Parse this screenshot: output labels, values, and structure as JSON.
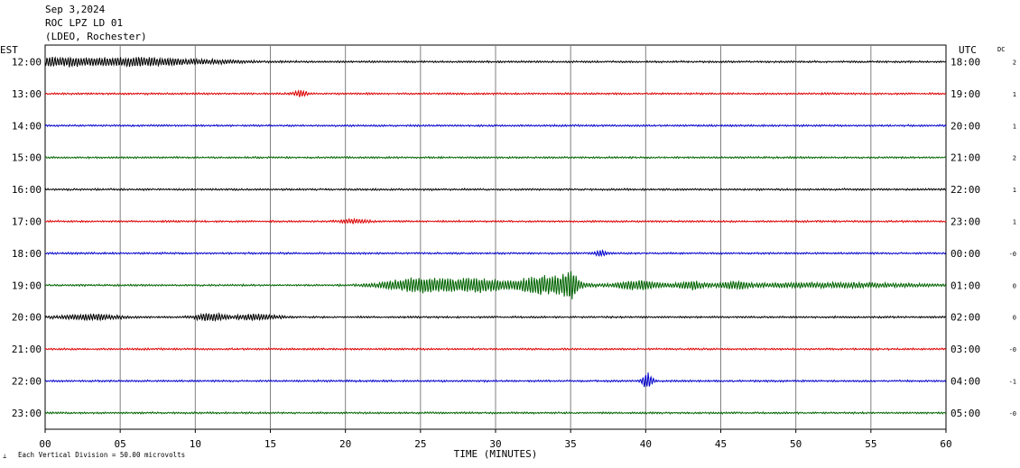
{
  "header": {
    "date": "Sep 3,2024",
    "station": "ROC LPZ LD 01",
    "network": "(LDEO, Rochester)"
  },
  "labels": {
    "left_zone": "EST",
    "right_zone": "UTC",
    "dc": "DC",
    "scale_note": "Each Vertical Division =   50.00 microvolts"
  },
  "colors": {
    "black": "#000000",
    "red": "#dd0000",
    "blue": "#0000cc",
    "green": "#006400",
    "grid": "#808080"
  },
  "chart_data": {
    "type": "line",
    "title": "",
    "xlabel": "TIME (MINUTES)",
    "ylabel": "",
    "xlim": [
      0,
      60
    ],
    "x_ticks": [
      "00",
      "05",
      "10",
      "15",
      "20",
      "25",
      "30",
      "35",
      "40",
      "45",
      "50",
      "55",
      "60"
    ],
    "series": [
      {
        "est": "12:00",
        "utc": "18:00",
        "dc": "2",
        "color": "black",
        "events": [
          {
            "t": 0.5,
            "w": 3,
            "a": 5
          },
          {
            "t": 5.5,
            "w": 3,
            "a": 3
          },
          {
            "t": 9,
            "w": 4,
            "a": 2.5
          }
        ]
      },
      {
        "est": "13:00",
        "utc": "19:00",
        "dc": "1",
        "color": "red",
        "events": [
          {
            "t": 17,
            "w": 0.5,
            "a": 3
          }
        ]
      },
      {
        "est": "14:00",
        "utc": "20:00",
        "dc": "1",
        "color": "blue",
        "events": []
      },
      {
        "est": "15:00",
        "utc": "21:00",
        "dc": "2",
        "color": "green",
        "events": []
      },
      {
        "est": "16:00",
        "utc": "22:00",
        "dc": "1",
        "color": "black",
        "events": []
      },
      {
        "est": "17:00",
        "utc": "23:00",
        "dc": "1",
        "color": "red",
        "events": [
          {
            "t": 20.5,
            "w": 1,
            "a": 2
          }
        ]
      },
      {
        "est": "18:00",
        "utc": "00:00",
        "dc": "-0",
        "color": "blue",
        "events": [
          {
            "t": 37,
            "w": 0.4,
            "a": 3
          }
        ]
      },
      {
        "est": "19:00",
        "utc": "01:00",
        "dc": "0",
        "color": "green",
        "events": [
          {
            "t": 25,
            "w": 2.5,
            "a": 8
          },
          {
            "t": 29,
            "w": 2,
            "a": 7
          },
          {
            "t": 33.5,
            "w": 2,
            "a": 11
          },
          {
            "t": 35,
            "w": 0.4,
            "a": 14
          },
          {
            "t": 39.5,
            "w": 1.5,
            "a": 5
          },
          {
            "t": 43,
            "w": 1,
            "a": 4
          },
          {
            "t": 46,
            "w": 1,
            "a": 3
          },
          {
            "t": 52,
            "w": 7,
            "a": 2.5
          }
        ]
      },
      {
        "est": "20:00",
        "utc": "02:00",
        "dc": "0",
        "color": "black",
        "events": [
          {
            "t": 3,
            "w": 2,
            "a": 3
          },
          {
            "t": 11,
            "w": 1,
            "a": 4
          },
          {
            "t": 14,
            "w": 1.5,
            "a": 3
          }
        ]
      },
      {
        "est": "21:00",
        "utc": "03:00",
        "dc": "-0",
        "color": "red",
        "events": []
      },
      {
        "est": "22:00",
        "utc": "04:00",
        "dc": "-1",
        "color": "blue",
        "events": [
          {
            "t": 40.1,
            "w": 0.35,
            "a": 9
          }
        ]
      },
      {
        "est": "23:00",
        "utc": "05:00",
        "dc": "-0",
        "color": "green",
        "events": []
      }
    ]
  }
}
